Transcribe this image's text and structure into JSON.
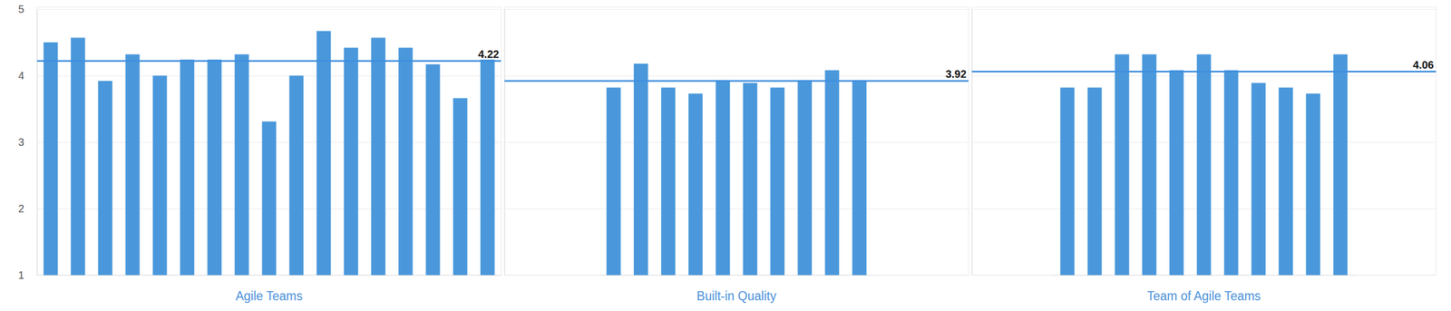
{
  "chart_data": [
    {
      "type": "bar",
      "x_label": "Agile Teams",
      "categories": [
        null,
        null,
        null,
        null,
        null,
        null,
        null,
        null,
        null,
        null,
        null,
        null,
        null,
        null,
        null,
        null,
        null
      ],
      "values": [
        4.5,
        4.57,
        3.92,
        4.32,
        4.0,
        4.24,
        4.24,
        4.32,
        3.31,
        4.0,
        4.67,
        4.42,
        4.57,
        4.42,
        4.17,
        3.66,
        4.24
      ],
      "color": "#4a98db",
      "average": 4.22,
      "ylim": [
        1,
        5
      ],
      "yticks": [
        1,
        2,
        3,
        4,
        5
      ],
      "grid": true,
      "tick_labels": "y"
    },
    {
      "type": "bar",
      "x_label": "Built-in Quality",
      "categories": [
        null,
        null,
        null,
        null,
        null,
        null,
        null,
        null,
        null,
        null
      ],
      "values": [
        3.82,
        4.18,
        3.82,
        3.73,
        3.93,
        3.89,
        3.82,
        3.93,
        4.08,
        3.93
      ],
      "color": "#4a98db",
      "average": 3.92,
      "ylim": [
        1,
        5
      ],
      "yticks": [
        1,
        2,
        3,
        4,
        5
      ],
      "grid": true,
      "tick_labels": false
    },
    {
      "type": "bar",
      "x_label": "Team of Agile Teams",
      "categories": [
        null,
        null,
        null,
        null,
        null,
        null,
        null,
        null,
        null,
        null,
        null
      ],
      "values": [
        3.82,
        3.82,
        4.32,
        4.32,
        4.08,
        4.32,
        4.08,
        3.89,
        3.82,
        3.73,
        4.32
      ],
      "color": "#4a98db",
      "average": 4.06,
      "ylim": [
        1,
        5
      ],
      "yticks": [
        1,
        2,
        3,
        4,
        5
      ],
      "grid": true,
      "tick_labels": false
    }
  ]
}
